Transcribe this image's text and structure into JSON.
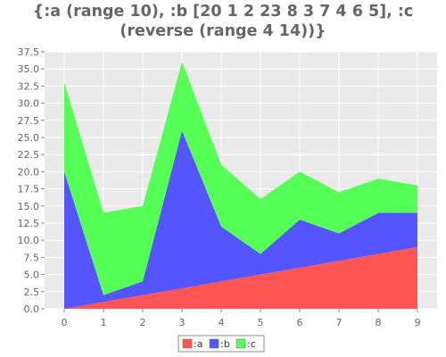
{
  "chart_data": {
    "type": "area",
    "stacked": true,
    "title_line1": "{:a (range 10), :b [20 1 2 23 8 3 7 4 6 5], :c",
    "title_line2": "(reverse (range 4 14))}",
    "x": [
      0,
      1,
      2,
      3,
      4,
      5,
      6,
      7,
      8,
      9
    ],
    "series": [
      {
        "name": ":a",
        "color": "#ff5555",
        "values": [
          0,
          1,
          2,
          3,
          4,
          5,
          6,
          7,
          8,
          9
        ]
      },
      {
        "name": ":b",
        "color": "#5555ff",
        "values": [
          20,
          1,
          2,
          23,
          8,
          3,
          7,
          4,
          6,
          5
        ]
      },
      {
        "name": ":c",
        "color": "#55ff55",
        "values": [
          13,
          12,
          11,
          10,
          9,
          8,
          7,
          6,
          5,
          4
        ]
      }
    ],
    "xlim": [
      -0.5,
      9.5
    ],
    "ylim": [
      0,
      37.5
    ],
    "y_ticks": [
      "0.0",
      "2.5",
      "5.0",
      "7.5",
      "10.0",
      "12.5",
      "15.0",
      "17.5",
      "20.0",
      "22.5",
      "25.0",
      "27.5",
      "30.0",
      "32.5",
      "35.0",
      "37.5"
    ],
    "x_ticks": [
      "0",
      "1",
      "2",
      "3",
      "4",
      "5",
      "6",
      "7",
      "8",
      "9"
    ],
    "grid": true,
    "legend_position": "bottom-center",
    "plot_background": "#eaeaea"
  }
}
